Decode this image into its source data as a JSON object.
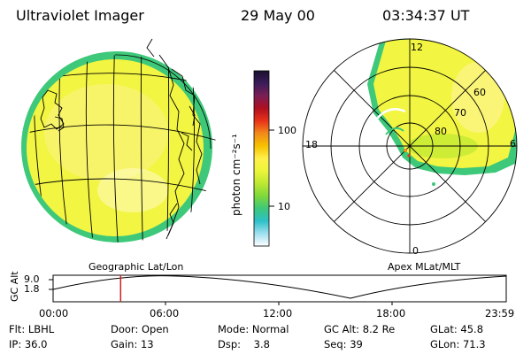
{
  "header": {
    "instrument": "Ultraviolet Imager",
    "date": "29 May 00",
    "time": "03:34:37 UT"
  },
  "colorbar": {
    "unit": "photon cm⁻²s⁻¹",
    "ticks": [
      "100",
      "10"
    ],
    "colors": [
      "#1a0f2e",
      "#3a1d5a",
      "#7a1f55",
      "#b01020",
      "#e8331a",
      "#f28a1a",
      "#f6c100",
      "#fff04a",
      "#ecf53a",
      "#bde832",
      "#7fd83a",
      "#3ec87a",
      "#2ec0c8",
      "#9fe0ef",
      "#ffffff"
    ]
  },
  "maps": {
    "left_label": "Geographic Lat/Lon",
    "right_label": "Apex MLat/MLT",
    "mlt_labels": {
      "top": "12",
      "left": "18",
      "right": "6",
      "bottom": "0"
    },
    "mlat_labels": [
      "60",
      "70",
      "80"
    ],
    "image_fill": "#f2f542",
    "rim_color": "#3ec87a"
  },
  "timeline": {
    "axis_label": "GC Alt",
    "y_ticks": [
      "9.0",
      "1.8"
    ],
    "time_ticks": [
      "00:00",
      "06:00",
      "12:00",
      "18:00",
      "23:59"
    ],
    "current_time_fraction": 0.149,
    "marker_color": "#d02020"
  },
  "footer": {
    "rows": [
      [
        {
          "k": "Flt:",
          "v": "LBHL"
        },
        {
          "k": "Door:",
          "v": "Open"
        },
        {
          "k": "Mode:",
          "v": "Normal"
        },
        {
          "k": "GC Alt:",
          "v": "8.2 Re"
        },
        {
          "k": "GLat:",
          "v": "45.8"
        }
      ],
      [
        {
          "k": "IP:",
          "v": "36.0"
        },
        {
          "k": "Gain:",
          "v": "13"
        },
        {
          "k": "Dsp:",
          "v": "3.8"
        },
        {
          "k": "Seq:",
          "v": "39"
        },
        {
          "k": "GLon:",
          "v": "71.3"
        }
      ]
    ]
  }
}
